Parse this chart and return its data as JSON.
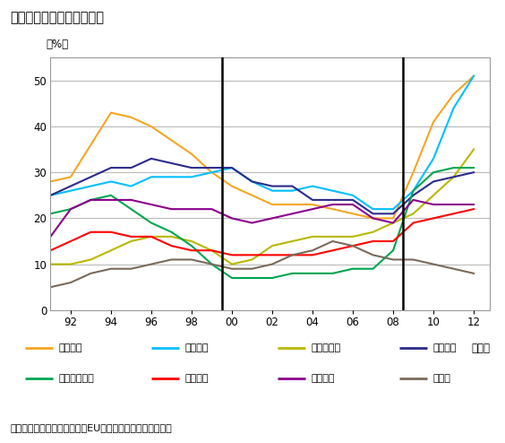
{
  "title": "欧州の若年層失業率の推移",
  "ylabel": "（%）",
  "xlabel_suffix": "（年）",
  "footnote": "ドイツの若年者の失業率は、EU諸国の中では極めて低い。",
  "years": [
    1991,
    1992,
    1993,
    1994,
    1995,
    1996,
    1997,
    1998,
    1999,
    2000,
    2001,
    2002,
    2003,
    2004,
    2005,
    2006,
    2007,
    2008,
    2009,
    2010,
    2011,
    2012
  ],
  "xtick_labels": [
    "92",
    "94",
    "96",
    "98",
    "00",
    "02",
    "04",
    "06",
    "08",
    "10",
    "12"
  ],
  "xtick_years": [
    1992,
    1994,
    1996,
    1998,
    2000,
    2002,
    2004,
    2006,
    2008,
    2010,
    2012
  ],
  "vlines": [
    1999.5,
    2008.5
  ],
  "ylim": [
    0,
    55
  ],
  "yticks": [
    0,
    10,
    20,
    30,
    40,
    50
  ],
  "series": {
    "スペイン": {
      "color": "#F5A623",
      "data": [
        28,
        29,
        36,
        43,
        42,
        40,
        37,
        34,
        30,
        27,
        25,
        23,
        23,
        23,
        22,
        21,
        20,
        20,
        30,
        41,
        47,
        51
      ]
    },
    "ギリシャ": {
      "color": "#00BFFF",
      "data": [
        25,
        26,
        27,
        28,
        27,
        29,
        29,
        29,
        30,
        31,
        28,
        26,
        26,
        27,
        26,
        25,
        22,
        22,
        26,
        33,
        44,
        51
      ]
    },
    "ポルトガル": {
      "color": "#B8B800",
      "data": [
        10,
        10,
        11,
        13,
        15,
        16,
        16,
        15,
        13,
        10,
        11,
        14,
        15,
        16,
        16,
        16,
        17,
        19,
        21,
        25,
        29,
        35
      ]
    },
    "イタリア": {
      "color": "#2B2B8C",
      "data": [
        25,
        27,
        29,
        31,
        31,
        33,
        32,
        31,
        31,
        31,
        28,
        27,
        27,
        24,
        24,
        24,
        21,
        21,
        25,
        28,
        29,
        30
      ]
    },
    "アイルランド": {
      "color": "#00A550",
      "data": [
        21,
        22,
        24,
        25,
        22,
        19,
        17,
        14,
        10,
        7,
        7,
        7,
        8,
        8,
        8,
        9,
        9,
        13,
        26,
        30,
        31,
        31
      ]
    },
    "イギリス": {
      "color": "#FF0000",
      "data": [
        13,
        15,
        17,
        17,
        16,
        16,
        14,
        13,
        13,
        12,
        12,
        12,
        12,
        12,
        13,
        14,
        15,
        15,
        19,
        20,
        21,
        22
      ]
    },
    "フランス": {
      "color": "#8B008B",
      "data": [
        16,
        22,
        24,
        24,
        24,
        23,
        22,
        22,
        22,
        20,
        19,
        20,
        21,
        22,
        23,
        23,
        20,
        19,
        24,
        23,
        23,
        23
      ]
    },
    "ドイツ": {
      "color": "#7B6A5A",
      "data": [
        5,
        6,
        8,
        9,
        9,
        10,
        11,
        11,
        10,
        9,
        9,
        10,
        12,
        13,
        15,
        14,
        12,
        11,
        11,
        10,
        9,
        8
      ]
    }
  },
  "legend_order": [
    "スペイン",
    "ギリシャ",
    "ポルトガル",
    "イタリア",
    "アイルランド",
    "イギリス",
    "フランス",
    "ドイツ"
  ],
  "background_color": "#FFFFFF",
  "plot_bg_color": "#FFFFFF",
  "grid_color": "#BBBBBB",
  "border_color": "#999999"
}
